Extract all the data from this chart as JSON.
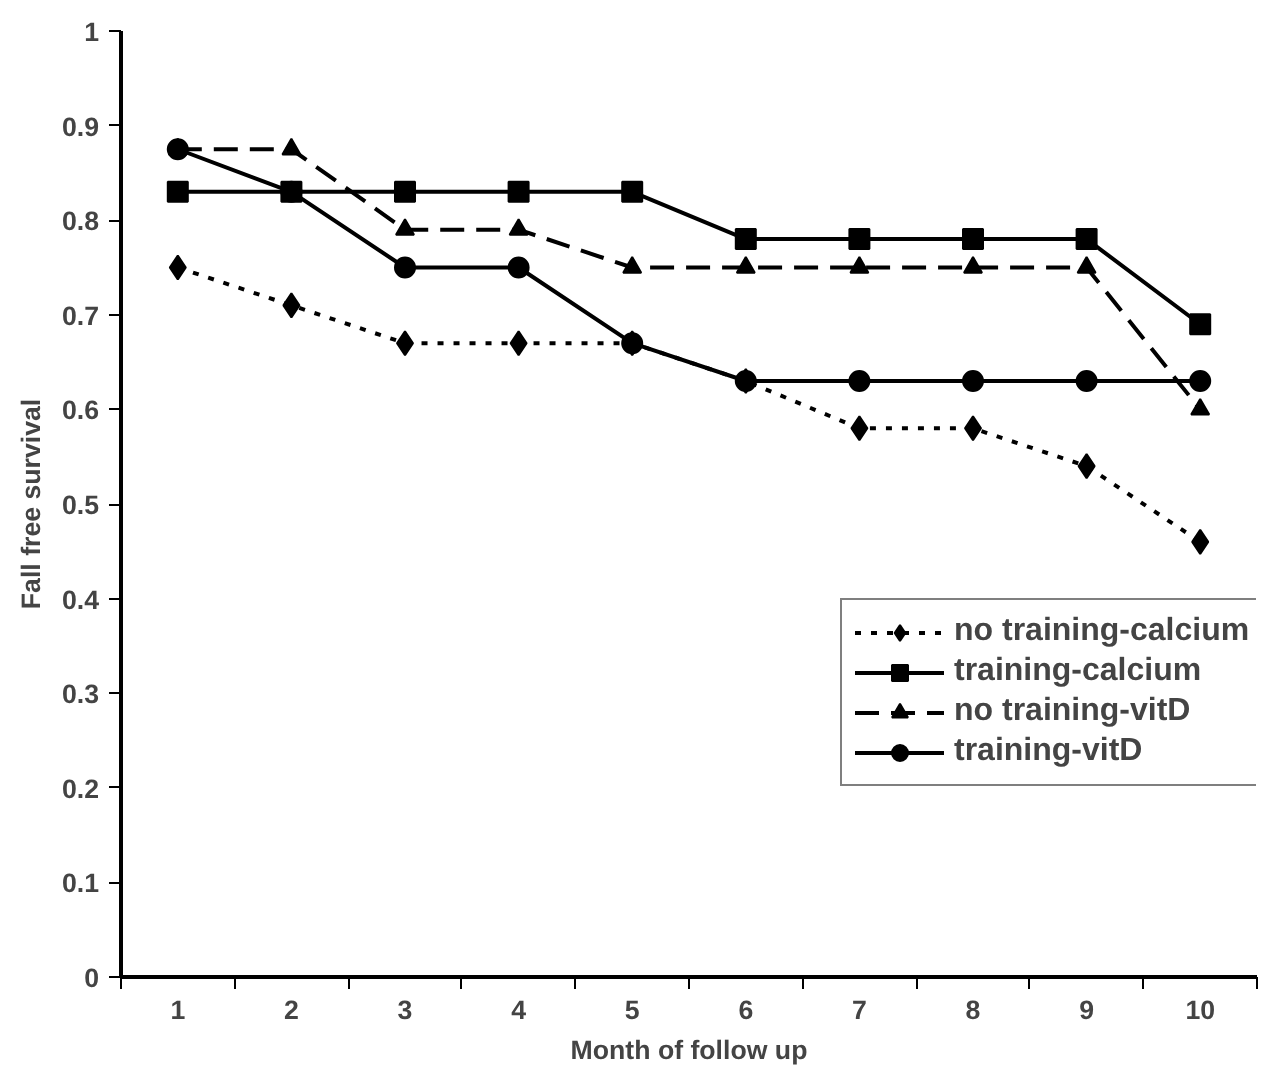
{
  "chart_data": {
    "type": "line",
    "xlabel": "Month of follow up",
    "ylabel": "Fall free survival",
    "categories": [
      "1",
      "2",
      "3",
      "4",
      "5",
      "6",
      "7",
      "8",
      "9",
      "10"
    ],
    "ylim": [
      0,
      1
    ],
    "yticks": [
      0,
      0.1,
      0.2,
      0.3,
      0.4,
      0.5,
      0.6,
      0.7,
      0.8,
      0.9,
      1
    ],
    "grid": false,
    "legend": "right",
    "series": [
      {
        "name": "no training-calcium",
        "color": "#000000",
        "marker": "diamond",
        "line_style": "dotted",
        "values": [
          0.75,
          0.71,
          0.67,
          0.67,
          0.67,
          0.63,
          0.58,
          0.58,
          0.54,
          0.46
        ]
      },
      {
        "name": "training-calcium",
        "color": "#000000",
        "marker": "square",
        "line_style": "solid",
        "values": [
          0.83,
          0.83,
          0.83,
          0.83,
          0.83,
          0.78,
          0.78,
          0.78,
          0.78,
          0.69
        ]
      },
      {
        "name": "no training-vitD",
        "color": "#000000",
        "marker": "triangle",
        "line_style": "dashed",
        "values": [
          0.875,
          0.875,
          0.79,
          0.79,
          0.75,
          0.75,
          0.75,
          0.75,
          0.75,
          0.6
        ]
      },
      {
        "name": "training-vitD",
        "color": "#000000",
        "marker": "circle",
        "line_style": "solid",
        "values": [
          0.875,
          0.83,
          0.75,
          0.75,
          0.67,
          0.63,
          0.63,
          0.63,
          0.63,
          0.63
        ]
      }
    ]
  }
}
